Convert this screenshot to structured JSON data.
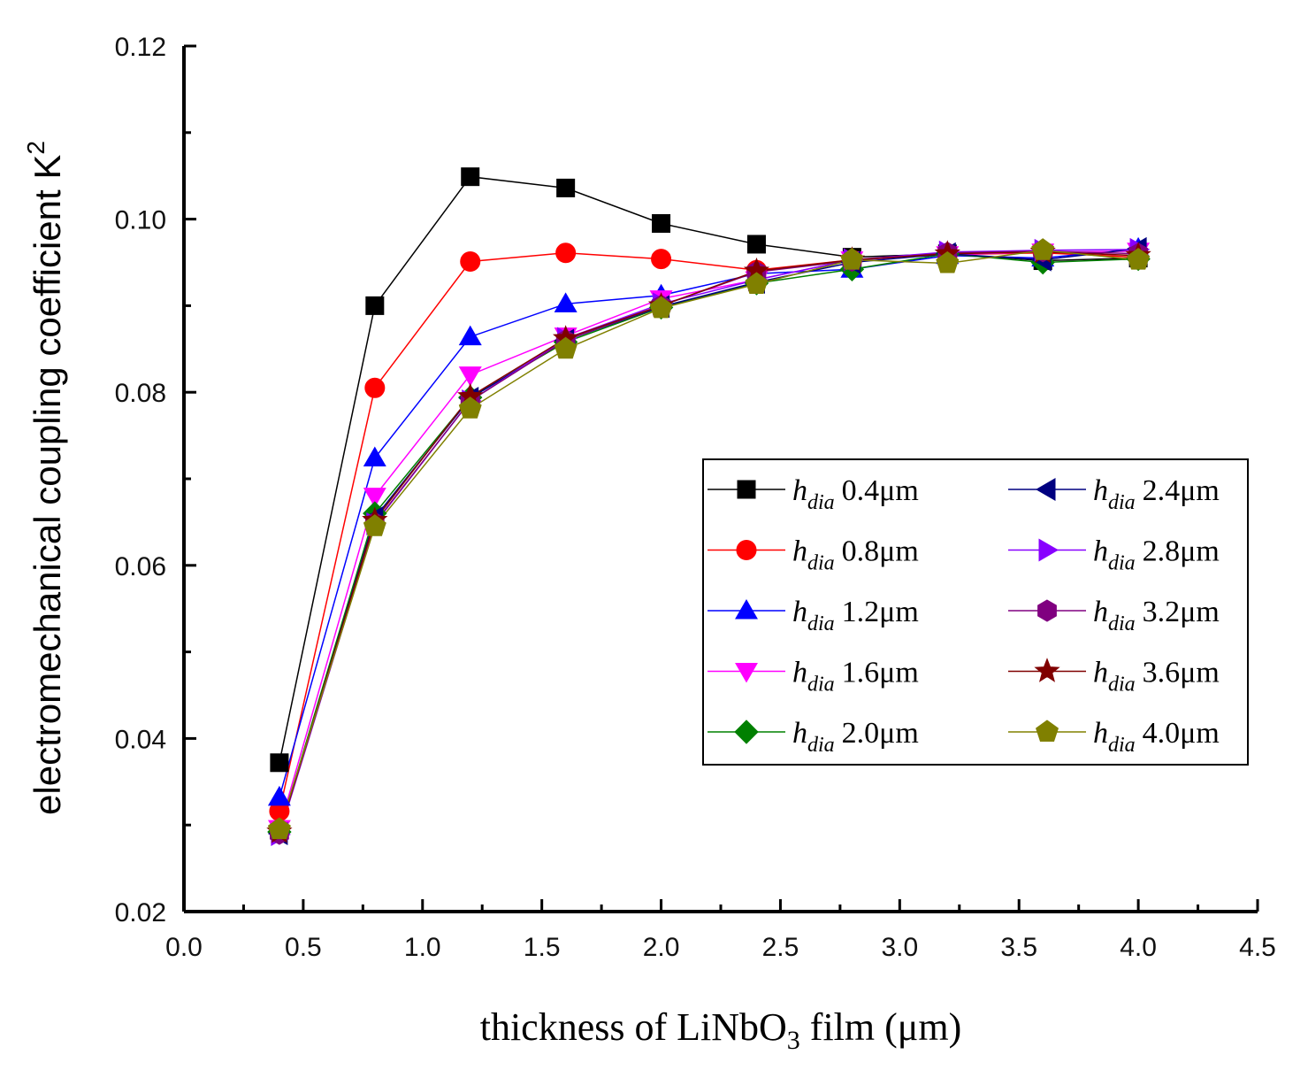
{
  "chart_data": {
    "type": "line",
    "title": "",
    "xlabel": {
      "prefix": "thickness of LiNbO",
      "subscript": "3",
      "suffix": " film (μm)"
    },
    "ylabel": {
      "text": "electromechanical coupling coefficient K",
      "superscript": "2"
    },
    "xlim": [
      0.0,
      4.5
    ],
    "ylim": [
      0.02,
      0.12
    ],
    "x_ticks": [
      "0.0",
      "0.5",
      "1.0",
      "1.5",
      "2.0",
      "2.5",
      "3.0",
      "3.5",
      "4.0",
      "4.5"
    ],
    "y_ticks": [
      "0.02",
      "0.04",
      "0.06",
      "0.08",
      "0.10",
      "0.12"
    ],
    "grid": false,
    "legend_position": "center-right",
    "x": [
      0.4,
      0.8,
      1.2,
      1.6,
      2.0,
      2.4,
      2.8,
      3.2,
      3.6,
      4.0
    ],
    "series": [
      {
        "name": "h_dia 0.4μm",
        "label_h": "h",
        "label_sub": "dia",
        "label_value": "0.4μm",
        "color": "#000000",
        "marker": "square",
        "values": [
          0.0372,
          0.09,
          0.1049,
          0.1036,
          0.0995,
          0.0971,
          0.0956,
          0.096,
          0.0952,
          0.0955
        ]
      },
      {
        "name": "h_dia 0.8μm",
        "label_h": "h",
        "label_sub": "dia",
        "label_value": "0.8μm",
        "color": "#ff0000",
        "marker": "circle",
        "values": [
          0.0316,
          0.0805,
          0.0951,
          0.0961,
          0.0954,
          0.0941,
          0.0953,
          0.0959,
          0.0961,
          0.0956
        ]
      },
      {
        "name": "h_dia 1.2μm",
        "label_h": "h",
        "label_sub": "dia",
        "label_value": "1.2μm",
        "color": "#0000ff",
        "marker": "triangle-up",
        "values": [
          0.0332,
          0.0724,
          0.0864,
          0.0902,
          0.0912,
          0.0937,
          0.0942,
          0.0958,
          0.0955,
          0.0966
        ]
      },
      {
        "name": "h_dia 1.6μm",
        "label_h": "h",
        "label_sub": "dia",
        "label_value": "1.6μm",
        "color": "#ff00ff",
        "marker": "triangle-down",
        "values": [
          0.0296,
          0.068,
          0.082,
          0.0865,
          0.0908,
          0.093,
          0.0953,
          0.0959,
          0.0962,
          0.0963
        ]
      },
      {
        "name": "h_dia 2.0μm",
        "label_h": "h",
        "label_sub": "dia",
        "label_value": "2.0μm",
        "color": "#008000",
        "marker": "diamond",
        "values": [
          0.0292,
          0.066,
          0.0794,
          0.0858,
          0.0898,
          0.0926,
          0.0942,
          0.096,
          0.095,
          0.0954
        ]
      },
      {
        "name": "h_dia 2.4μm",
        "label_h": "h",
        "label_sub": "dia",
        "label_value": "2.4μm",
        "color": "#000080",
        "marker": "triangle-left",
        "values": [
          0.029,
          0.0655,
          0.0793,
          0.086,
          0.0899,
          0.0927,
          0.095,
          0.096,
          0.0953,
          0.0966
        ]
      },
      {
        "name": "h_dia 2.8μm",
        "label_h": "h",
        "label_sub": "dia",
        "label_value": "2.8μm",
        "color": "#8800ff",
        "marker": "triangle-right",
        "values": [
          0.0289,
          0.0648,
          0.079,
          0.0862,
          0.0902,
          0.093,
          0.0953,
          0.0962,
          0.0964,
          0.0965
        ]
      },
      {
        "name": "h_dia 3.2μm",
        "label_h": "h",
        "label_sub": "dia",
        "label_value": "3.2μm",
        "color": "#800080",
        "marker": "hexagon",
        "values": [
          0.029,
          0.0649,
          0.079,
          0.086,
          0.09,
          0.0939,
          0.0952,
          0.0961,
          0.0963,
          0.096
        ]
      },
      {
        "name": "h_dia 3.6μm",
        "label_h": "h",
        "label_sub": "dia",
        "label_value": "3.6μm",
        "color": "#800000",
        "marker": "star",
        "values": [
          0.0292,
          0.0652,
          0.0795,
          0.0862,
          0.09,
          0.094,
          0.0953,
          0.096,
          0.0962,
          0.0958
        ]
      },
      {
        "name": "h_dia 4.0μm",
        "label_h": "h",
        "label_sub": "dia",
        "label_value": "4.0μm",
        "color": "#808000",
        "marker": "pentagon",
        "values": [
          0.0295,
          0.0645,
          0.0781,
          0.085,
          0.0897,
          0.0925,
          0.0953,
          0.0949,
          0.0964,
          0.0953
        ]
      }
    ]
  }
}
